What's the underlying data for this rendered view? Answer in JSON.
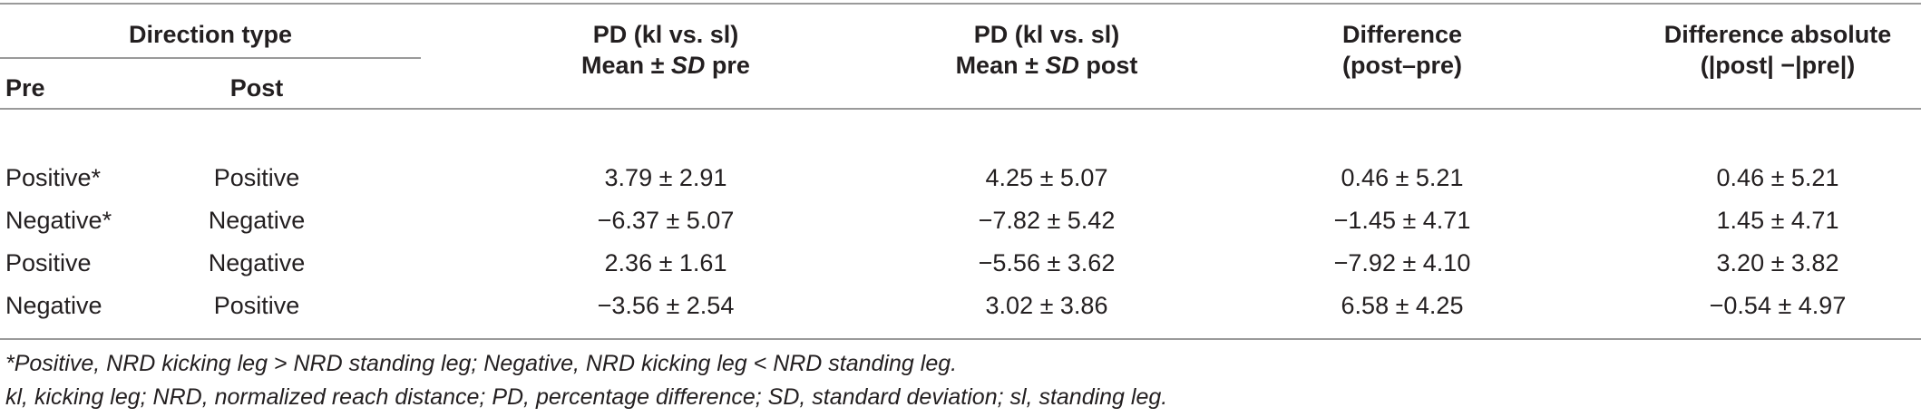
{
  "table": {
    "header": {
      "direction_type": "Direction type",
      "pre": "Pre",
      "post": "Post",
      "col_pd_pre_line1": "PD (kl vs. sl)",
      "col_pd_pre_line2_a": "Mean ± ",
      "col_pd_pre_line2_sd": "SD",
      "col_pd_pre_line2_b": " pre",
      "col_pd_post_line1": "PD (kl vs. sl)",
      "col_pd_post_line2_a": "Mean ± ",
      "col_pd_post_line2_sd": "SD",
      "col_pd_post_line2_b": " post",
      "col_diff_line1": "Difference",
      "col_diff_line2": "(post–pre)",
      "col_absdiff_line1": "Difference absolute",
      "col_absdiff_line2": "(|post| −|pre|)"
    },
    "rows": [
      [
        "Positive*",
        "Positive",
        "3.79 ± 2.91",
        "4.25 ± 5.07",
        "0.46 ± 5.21",
        "0.46 ± 5.21"
      ],
      [
        "Negative*",
        "Negative",
        "−6.37 ± 5.07",
        "−7.82 ± 5.42",
        "−1.45 ± 4.71",
        "1.45 ± 4.71"
      ],
      [
        "Positive",
        "Negative",
        "2.36 ± 1.61",
        "−5.56 ± 3.62",
        "−7.92 ± 4.10",
        "3.20 ± 3.82"
      ],
      [
        "Negative",
        "Positive",
        "−3.56 ± 2.54",
        "3.02 ± 3.86",
        "6.58 ± 4.25",
        "−0.54 ± 4.97"
      ]
    ],
    "footnotes": [
      "*Positive, NRD kicking leg > NRD standing leg; Negative, NRD kicking leg < NRD standing leg.",
      "kl, kicking leg; NRD, normalized reach distance; PD, percentage difference; SD, standard deviation; sl, standing leg."
    ]
  }
}
